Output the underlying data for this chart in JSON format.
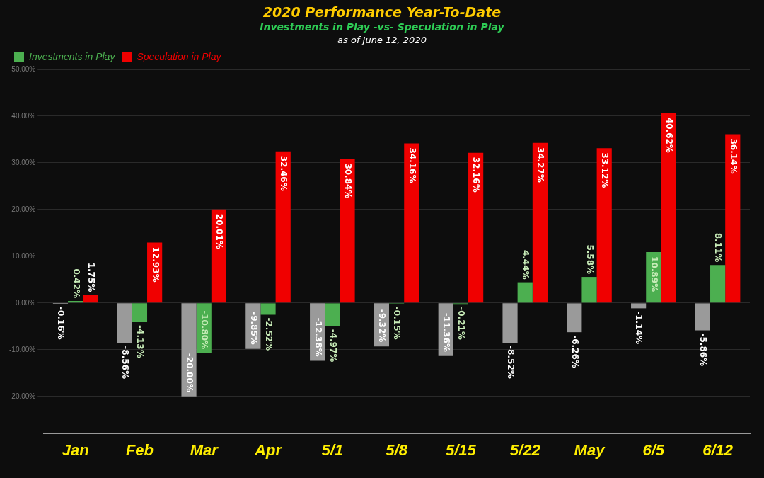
{
  "chart_data": {
    "type": "bar",
    "title": "2020 Performance Year-To-Date",
    "subtitle": "Investments in Play -vs- Speculation in Play",
    "annotations": [
      "as of June 12, 2020"
    ],
    "categories": [
      "Jan",
      "Feb",
      "Mar",
      "Apr",
      "5/1",
      "5/8",
      "5/15",
      "5/22",
      "May",
      "6/5",
      "6/12"
    ],
    "series": [
      {
        "color": "#9a9a9a",
        "values": [
          -0.16,
          -8.56,
          -20.0,
          -9.85,
          -12.38,
          -9.32,
          -11.36,
          -8.52,
          -6.26,
          -1.14,
          -5.86
        ],
        "value_labels": [
          "-0.16%",
          "-8.56%",
          "-20.00%",
          "-9.85%",
          "-12.38%",
          "-9.32%",
          "-11.36%",
          "-8.52%",
          "-6.26%",
          "-1.14%",
          "-5.86%"
        ]
      },
      {
        "name": "Investments in Play",
        "color": "#4caf50",
        "values": [
          0.42,
          -4.13,
          -10.8,
          -2.52,
          -4.97,
          -0.15,
          -0.21,
          4.44,
          5.58,
          10.89,
          8.11
        ],
        "value_labels": [
          "0.42%",
          "-4.13%",
          "-10.80%",
          "-2.52%",
          "-4.97%",
          "-0.15%",
          "-0.21%",
          "4.44%",
          "5.58%",
          "10.89%",
          "8.11%"
        ]
      },
      {
        "name": "Speculation in Play",
        "color": "#f00000",
        "values": [
          1.75,
          12.93,
          20.01,
          32.46,
          30.84,
          34.16,
          32.16,
          34.27,
          33.12,
          40.62,
          36.14
        ],
        "value_labels": [
          "1.75%",
          "12.93%",
          "20.01%",
          "32.46%",
          "30.84%",
          "34.16%",
          "32.16%",
          "34.27%",
          "33.12%",
          "40.62%",
          "36.14%"
        ]
      }
    ],
    "ylim": [
      -28,
      50
    ],
    "yticks": [
      {
        "value": -20,
        "label": "-20.00%"
      },
      {
        "value": -10,
        "label": "-10.00%"
      },
      {
        "value": 0,
        "label": "0.00%"
      },
      {
        "value": 10,
        "label": "10.00%"
      },
      {
        "value": 20,
        "label": "20.00%"
      },
      {
        "value": 30,
        "label": "30.00%"
      },
      {
        "value": 40,
        "label": "40.00%"
      },
      {
        "value": 50,
        "label": "50.00%"
      }
    ],
    "grid": "y",
    "legend": "top left"
  }
}
